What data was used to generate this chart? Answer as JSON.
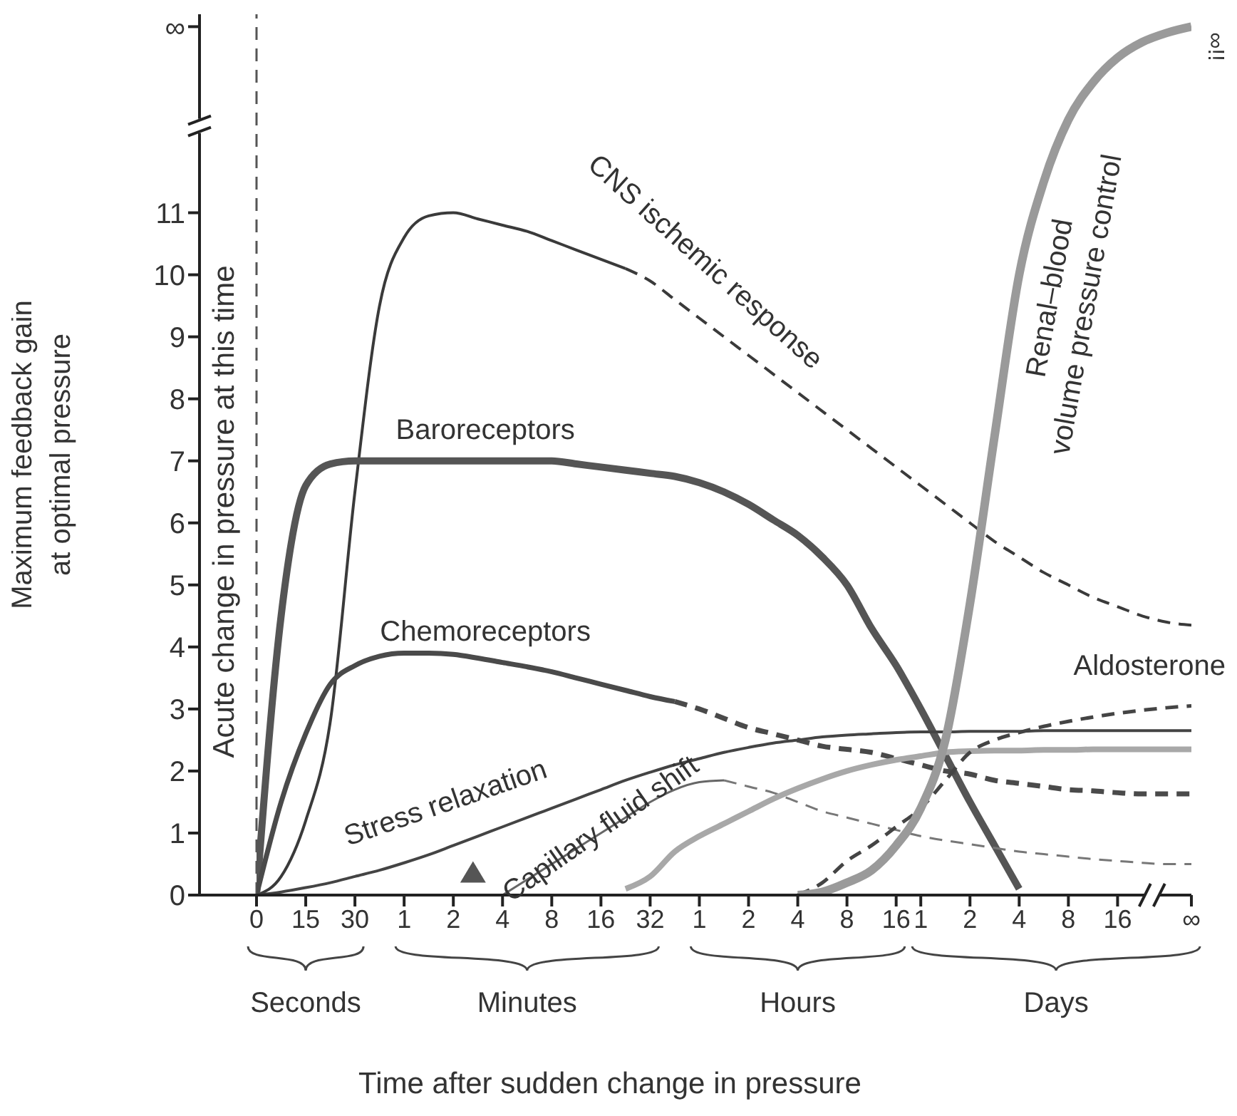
{
  "chart_data": {
    "type": "line",
    "xlabel": "Time after sudden change in pressure",
    "ylabel": "Maximum feedback gain\nat optimal pressure",
    "categories": [
      "0",
      null,
      "15",
      null,
      "30",
      null,
      "1",
      null,
      "2",
      null,
      "4",
      null,
      "8",
      null,
      "16",
      null,
      "32",
      null,
      "1",
      null,
      "2",
      null,
      "4",
      null,
      "8",
      null,
      "16",
      "1",
      null,
      "2",
      null,
      "4",
      null,
      "8",
      null,
      "16",
      null,
      null,
      "∞"
    ],
    "ylim": [
      0,
      14.2
    ],
    "yticks": [
      0,
      1,
      2,
      3,
      4,
      5,
      6,
      7,
      8,
      9,
      10,
      11,
      {
        "value": 14,
        "label": "∞"
      }
    ],
    "series": [
      {
        "name": "CNS ischemic response",
        "color": "#3a3a3a",
        "line_style": "solid",
        "values": [
          0,
          0.3,
          1.2,
          2.8,
          6.5,
          9.5,
          10.6,
          10.95,
          11.0,
          10.9,
          10.8,
          10.7,
          10.55,
          10.4,
          10.25,
          10.1,
          null,
          null,
          null,
          null,
          null,
          null,
          null,
          null,
          null,
          null,
          null,
          null,
          null,
          null,
          null,
          null,
          null,
          null,
          null,
          null,
          null,
          null,
          null
        ]
      },
      {
        "color": "#3a3a3a",
        "line_style": "dashed",
        "values": [
          null,
          null,
          null,
          null,
          null,
          null,
          null,
          null,
          null,
          null,
          null,
          null,
          null,
          null,
          null,
          10.1,
          9.9,
          9.6,
          9.3,
          9.0,
          8.7,
          8.4,
          8.1,
          7.8,
          7.5,
          7.2,
          6.9,
          6.6,
          6.3,
          6.0,
          5.7,
          5.45,
          5.2,
          5.0,
          4.8,
          4.65,
          4.5,
          4.4,
          4.35
        ]
      },
      {
        "name": "Baroreceptors",
        "color": "#555555",
        "line_style": "solid",
        "values": [
          0,
          4.5,
          6.6,
          6.95,
          7.0,
          7.0,
          7.0,
          7.0,
          7.0,
          7.0,
          7.0,
          7.0,
          7.0,
          6.95,
          6.9,
          6.85,
          6.8,
          6.75,
          6.65,
          6.5,
          6.3,
          6.05,
          5.8,
          5.45,
          5.0,
          4.3,
          3.7,
          3.0,
          2.25,
          1.5,
          0.8,
          0.1,
          null,
          null,
          null,
          null,
          null,
          null,
          null
        ]
      },
      {
        "name": "Chemoreceptors",
        "color": "#4a4a4a",
        "line_style": "solid",
        "values": [
          0,
          1.5,
          2.6,
          3.4,
          3.7,
          3.85,
          3.9,
          3.9,
          3.88,
          3.82,
          3.75,
          3.68,
          3.6,
          3.5,
          3.4,
          3.3,
          3.2,
          3.12,
          null,
          null,
          null,
          null,
          null,
          null,
          null,
          null,
          null,
          null,
          null,
          null,
          null,
          null,
          null,
          null,
          null,
          null,
          null,
          null,
          null
        ]
      },
      {
        "color": "#4a4a4a",
        "line_style": "dashed",
        "values": [
          null,
          null,
          null,
          null,
          null,
          null,
          null,
          null,
          null,
          null,
          null,
          null,
          null,
          null,
          null,
          null,
          null,
          3.12,
          3.0,
          2.85,
          2.7,
          2.6,
          2.5,
          2.4,
          2.35,
          2.3,
          2.2,
          2.1,
          2.0,
          1.95,
          1.85,
          1.8,
          1.75,
          1.7,
          1.68,
          1.65,
          1.63,
          1.63,
          1.63
        ]
      },
      {
        "name": "Stress relaxation",
        "color": "#444444",
        "line_style": "solid",
        "values": [
          0,
          0.05,
          0.12,
          0.2,
          0.3,
          0.4,
          0.52,
          0.65,
          0.8,
          0.95,
          1.1,
          1.25,
          1.4,
          1.55,
          1.7,
          1.85,
          1.98,
          2.1,
          2.2,
          2.3,
          2.38,
          2.45,
          2.5,
          2.55,
          2.58,
          2.6,
          2.62,
          2.63,
          2.63,
          2.64,
          2.64,
          2.64,
          2.65,
          2.65,
          2.65,
          2.65,
          2.65,
          2.65,
          2.65
        ]
      },
      {
        "name": "Capillary fluid shift",
        "color": "#666666",
        "line_style": "solid",
        "values": [
          null,
          null,
          null,
          null,
          null,
          null,
          null,
          null,
          null,
          null,
          0,
          0.25,
          0.5,
          0.75,
          1.0,
          1.25,
          1.5,
          1.7,
          1.82,
          1.85,
          null,
          null,
          null,
          null,
          null,
          null,
          null,
          null,
          null,
          null,
          null,
          null,
          null,
          null,
          null,
          null,
          null,
          null,
          null
        ]
      },
      {
        "color": "#777777",
        "line_style": "dashed",
        "values": [
          null,
          null,
          null,
          null,
          null,
          null,
          null,
          null,
          null,
          null,
          null,
          null,
          null,
          null,
          null,
          null,
          null,
          null,
          null,
          1.85,
          1.75,
          1.65,
          1.5,
          1.35,
          1.25,
          1.15,
          1.05,
          0.95,
          0.88,
          0.82,
          0.76,
          0.7,
          0.66,
          0.62,
          0.58,
          0.55,
          0.52,
          0.5,
          0.5
        ]
      },
      {
        "color": "#a8a8a8",
        "line_style": "solid",
        "values": [
          null,
          null,
          null,
          null,
          null,
          null,
          null,
          null,
          null,
          null,
          null,
          null,
          null,
          null,
          null,
          0.1,
          0.3,
          0.7,
          0.95,
          1.15,
          1.35,
          1.55,
          1.72,
          1.87,
          2.0,
          2.1,
          2.18,
          2.24,
          2.3,
          2.32,
          2.33,
          2.33,
          2.34,
          2.34,
          2.35,
          2.35,
          2.35,
          2.35,
          2.35
        ]
      },
      {
        "name": "Aldosterone",
        "color": "#444444",
        "line_style": "dashed",
        "values": [
          null,
          null,
          null,
          null,
          null,
          null,
          null,
          null,
          null,
          null,
          null,
          null,
          null,
          null,
          null,
          null,
          null,
          null,
          null,
          null,
          null,
          null,
          0,
          0.2,
          0.55,
          0.8,
          1.1,
          1.4,
          1.85,
          2.3,
          2.5,
          2.62,
          2.72,
          2.8,
          2.87,
          2.93,
          2.98,
          3.02,
          3.05
        ]
      },
      {
        "name": "Renal–blood volume pressure control",
        "color": "#9a9a9a",
        "line_style": "solid",
        "values": [
          null,
          null,
          null,
          null,
          null,
          null,
          null,
          null,
          null,
          null,
          null,
          null,
          null,
          null,
          null,
          null,
          null,
          null,
          null,
          null,
          null,
          null,
          0,
          0.05,
          0.2,
          0.4,
          0.8,
          1.4,
          2.5,
          4.7,
          7.4,
          10.0,
          11.5,
          12.5,
          13.1,
          13.5,
          13.75,
          13.9,
          14.0
        ]
      }
    ],
    "ref_lines": [
      {
        "axis": "x",
        "value": "0",
        "label": "Acute change in pressure at this time",
        "line_style": "dashed",
        "color": "#555555"
      }
    ],
    "annotations": [
      "Seconds",
      "Minutes",
      "Hours",
      "Days",
      {
        "text": "∞!!",
        "x": "∞",
        "y": 14
      }
    ],
    "tick_labels": "xy"
  }
}
